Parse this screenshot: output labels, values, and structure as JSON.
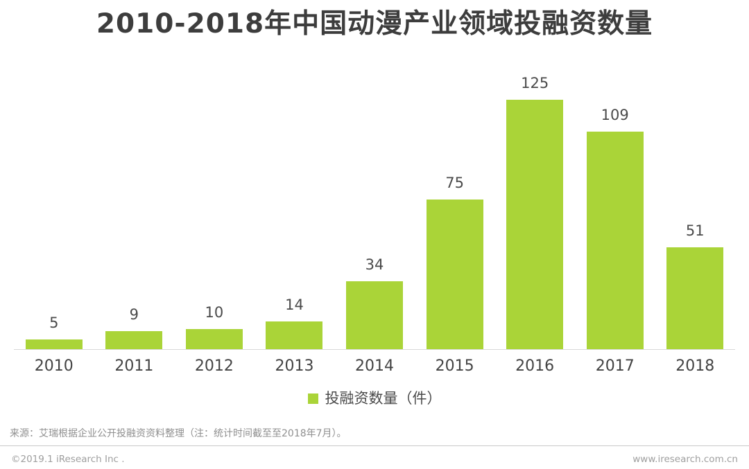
{
  "title": "2010-2018年中国动漫产业领域投融资数量",
  "chart_data": {
    "type": "bar",
    "title": "2010-2018年中国动漫产业领域投融资数量",
    "categories": [
      "2010",
      "2011",
      "2012",
      "2013",
      "2014",
      "2015",
      "2016",
      "2017",
      "2018"
    ],
    "values": [
      5,
      9,
      10,
      14,
      34,
      75,
      125,
      109,
      51
    ],
    "series_name": "投融资数量（件）",
    "xlabel": "",
    "ylabel": "",
    "ylim": [
      0,
      130
    ],
    "grid": false,
    "value_labels_shown": true,
    "legend_position": "bottom",
    "bar_color": "#aad438"
  },
  "legend": {
    "label": "投融资数量（件）",
    "swatch_color": "#aad438"
  },
  "source_note": "来源：艾瑞根据企业公开投融资资料整理（注：统计时间截至至2018年7月）。",
  "footer": {
    "copyright": "©2019.1 iResearch Inc .",
    "website": "www.iresearch.com.cn"
  },
  "colors": {
    "bar": "#aad438",
    "title_text": "#3d3d3d",
    "label_text": "#4a4a4a",
    "tick_text": "#434343",
    "muted_text": "#8f8f8f",
    "axis_line": "#d8d8d8",
    "divider_line": "#c9c9c9",
    "background": "#ffffff"
  }
}
